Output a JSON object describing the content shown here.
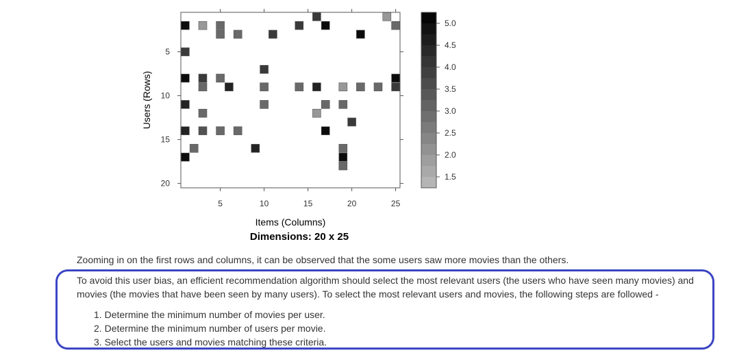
{
  "chart_data": {
    "type": "heatmap",
    "title": "Dimensions: 20 x 25",
    "xlabel": "Items (Columns)",
    "ylabel": "Users (Rows)",
    "xlim": [
      0.5,
      25.5
    ],
    "ylim": [
      20.5,
      0.5
    ],
    "x_ticks": [
      5,
      10,
      15,
      20,
      25
    ],
    "y_ticks": [
      5,
      10,
      15,
      20
    ],
    "colorbar": {
      "min": 1.25,
      "max": 5.25,
      "ticks": [
        "5.0",
        "4.5",
        "4.0",
        "3.5",
        "3.0",
        "2.5",
        "2.0",
        "1.5"
      ],
      "tick_values": [
        5.0,
        4.5,
        4.0,
        3.5,
        3.0,
        2.5,
        2.0,
        1.5
      ]
    },
    "colors": {
      "low": "#bbbbbb",
      "high": "#000000"
    },
    "cells": [
      {
        "row": 1,
        "col": 16,
        "value": 4.0
      },
      {
        "row": 1,
        "col": 24,
        "value": 2.0
      },
      {
        "row": 2,
        "col": 1,
        "value": 5.0
      },
      {
        "row": 2,
        "col": 3,
        "value": 2.0
      },
      {
        "row": 2,
        "col": 5,
        "value": 3.0
      },
      {
        "row": 2,
        "col": 14,
        "value": 4.0
      },
      {
        "row": 2,
        "col": 17,
        "value": 5.0
      },
      {
        "row": 2,
        "col": 25,
        "value": 3.0
      },
      {
        "row": 3,
        "col": 5,
        "value": 3.0
      },
      {
        "row": 3,
        "col": 7,
        "value": 3.0
      },
      {
        "row": 3,
        "col": 11,
        "value": 4.0
      },
      {
        "row": 3,
        "col": 21,
        "value": 5.0
      },
      {
        "row": 5,
        "col": 1,
        "value": 4.0
      },
      {
        "row": 7,
        "col": 10,
        "value": 4.0
      },
      {
        "row": 8,
        "col": 1,
        "value": 5.0
      },
      {
        "row": 8,
        "col": 3,
        "value": 4.0
      },
      {
        "row": 8,
        "col": 5,
        "value": 3.0
      },
      {
        "row": 8,
        "col": 25,
        "value": 5.0
      },
      {
        "row": 9,
        "col": 3,
        "value": 3.0
      },
      {
        "row": 9,
        "col": 6,
        "value": 4.5
      },
      {
        "row": 9,
        "col": 10,
        "value": 3.0
      },
      {
        "row": 9,
        "col": 14,
        "value": 3.0
      },
      {
        "row": 9,
        "col": 16,
        "value": 4.5
      },
      {
        "row": 9,
        "col": 19,
        "value": 2.0
      },
      {
        "row": 9,
        "col": 21,
        "value": 3.0
      },
      {
        "row": 9,
        "col": 23,
        "value": 3.0
      },
      {
        "row": 9,
        "col": 25,
        "value": 4.0
      },
      {
        "row": 11,
        "col": 1,
        "value": 4.5
      },
      {
        "row": 11,
        "col": 10,
        "value": 3.0
      },
      {
        "row": 11,
        "col": 17,
        "value": 3.0
      },
      {
        "row": 11,
        "col": 19,
        "value": 3.0
      },
      {
        "row": 12,
        "col": 3,
        "value": 3.0
      },
      {
        "row": 12,
        "col": 16,
        "value": 2.0
      },
      {
        "row": 13,
        "col": 20,
        "value": 4.0
      },
      {
        "row": 14,
        "col": 1,
        "value": 4.5
      },
      {
        "row": 14,
        "col": 3,
        "value": 3.5
      },
      {
        "row": 14,
        "col": 5,
        "value": 3.0
      },
      {
        "row": 14,
        "col": 7,
        "value": 3.0
      },
      {
        "row": 14,
        "col": 17,
        "value": 5.0
      },
      {
        "row": 16,
        "col": 2,
        "value": 3.0
      },
      {
        "row": 16,
        "col": 9,
        "value": 4.5
      },
      {
        "row": 16,
        "col": 19,
        "value": 3.0
      },
      {
        "row": 17,
        "col": 1,
        "value": 5.0
      },
      {
        "row": 17,
        "col": 19,
        "value": 5.0
      },
      {
        "row": 18,
        "col": 19,
        "value": 3.0
      }
    ]
  },
  "text": {
    "para1": "Zooming in on the first rows and columns, it can be observed that the some users saw more movies than the others.",
    "para2": "To avoid this user bias, an efficient recommendation algorithm should select the most relevant users (the users who have seen many movies) and movies (the movies that have been seen by many users). To select the most relevant users and movies, the following steps are followed -",
    "steps": [
      "Determine the minimum number of movies per user.",
      "Determine the minimum number of users per movie.",
      "Select the users and movies matching these criteria."
    ],
    "step_numbers": [
      "1.",
      "2.",
      "3."
    ]
  }
}
